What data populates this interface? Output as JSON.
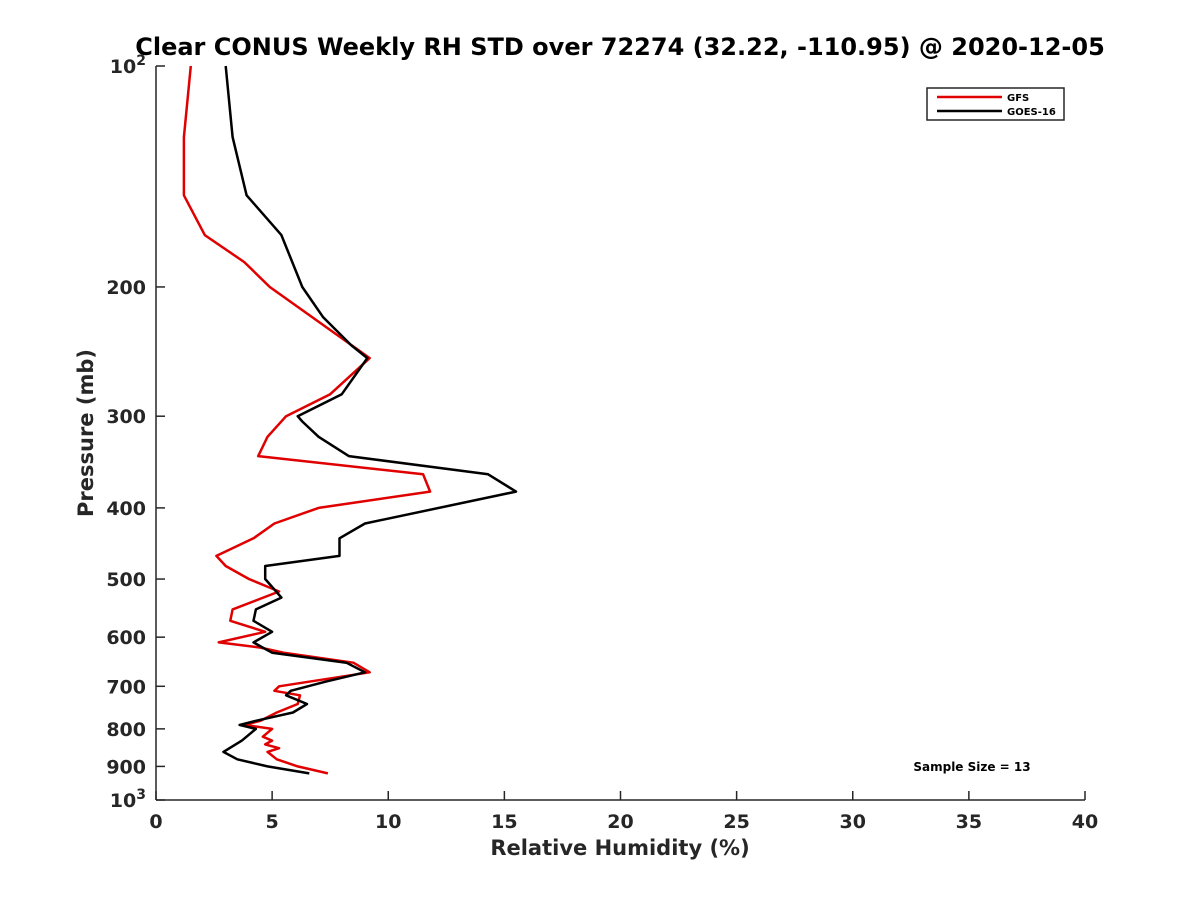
{
  "chart_data": {
    "type": "line",
    "title": "Clear CONUS Weekly RH STD over 72274 (32.22, -110.95) @ 2020-12-05",
    "xlabel": "Relative Humidity (%)",
    "ylabel": "Pressure (mb)",
    "xlim": [
      0,
      40
    ],
    "ylim": [
      100,
      1000
    ],
    "y_scale": "log",
    "y_reversed": true,
    "grid": false,
    "x_ticks": [
      0,
      5,
      10,
      15,
      20,
      25,
      30,
      35,
      40
    ],
    "y_ticks": [
      {
        "value": 100,
        "base": "10",
        "exp": "2"
      },
      {
        "value": 200,
        "label": "200"
      },
      {
        "value": 300,
        "label": "300"
      },
      {
        "value": 400,
        "label": "400"
      },
      {
        "value": 500,
        "label": "500"
      },
      {
        "value": 600,
        "label": "600"
      },
      {
        "value": 700,
        "label": "700"
      },
      {
        "value": 800,
        "label": "800"
      },
      {
        "value": 900,
        "label": "900"
      },
      {
        "value": 1000,
        "base": "10",
        "exp": "3"
      }
    ],
    "legend_position": "top-right",
    "annotation": "Sample Size = 13",
    "series": [
      {
        "name": "GFS",
        "color": "#e00000",
        "points": [
          [
            1.5,
            100
          ],
          [
            1.2,
            125
          ],
          [
            1.2,
            150
          ],
          [
            2.1,
            170
          ],
          [
            3.8,
            185
          ],
          [
            4.9,
            200
          ],
          [
            9.2,
            250
          ],
          [
            7.5,
            280
          ],
          [
            5.6,
            300
          ],
          [
            4.8,
            320
          ],
          [
            4.4,
            340
          ],
          [
            11.5,
            360
          ],
          [
            11.8,
            380
          ],
          [
            7.0,
            400
          ],
          [
            5.1,
            420
          ],
          [
            4.2,
            440
          ],
          [
            2.6,
            465
          ],
          [
            3.0,
            480
          ],
          [
            4.0,
            500
          ],
          [
            5.3,
            520
          ],
          [
            3.3,
            550
          ],
          [
            3.2,
            570
          ],
          [
            4.7,
            590
          ],
          [
            2.7,
            610
          ],
          [
            4.5,
            620
          ],
          [
            5.5,
            630
          ],
          [
            8.5,
            650
          ],
          [
            9.2,
            670
          ],
          [
            5.3,
            700
          ],
          [
            5.1,
            710
          ],
          [
            6.2,
            720
          ],
          [
            6.1,
            740
          ],
          [
            5.2,
            760
          ],
          [
            4.5,
            780
          ],
          [
            3.8,
            790
          ],
          [
            5.0,
            800
          ],
          [
            4.6,
            820
          ],
          [
            5.0,
            830
          ],
          [
            4.7,
            840
          ],
          [
            5.3,
            850
          ],
          [
            4.8,
            860
          ],
          [
            5.2,
            880
          ],
          [
            6.1,
            900
          ],
          [
            7.4,
            920
          ]
        ]
      },
      {
        "name": "GOES-16",
        "color": "#000000",
        "points": [
          [
            3.0,
            100
          ],
          [
            3.3,
            125
          ],
          [
            3.9,
            150
          ],
          [
            5.4,
            170
          ],
          [
            6.3,
            200
          ],
          [
            7.2,
            220
          ],
          [
            8.4,
            240
          ],
          [
            9.1,
            250
          ],
          [
            8.0,
            280
          ],
          [
            6.1,
            300
          ],
          [
            6.3,
            305
          ],
          [
            7.0,
            320
          ],
          [
            8.3,
            340
          ],
          [
            14.3,
            360
          ],
          [
            15.5,
            380
          ],
          [
            9.0,
            420
          ],
          [
            7.9,
            440
          ],
          [
            7.9,
            465
          ],
          [
            4.7,
            480
          ],
          [
            4.7,
            500
          ],
          [
            5.4,
            530
          ],
          [
            4.3,
            550
          ],
          [
            4.2,
            570
          ],
          [
            5.0,
            590
          ],
          [
            4.2,
            610
          ],
          [
            4.6,
            620
          ],
          [
            5.0,
            630
          ],
          [
            8.2,
            650
          ],
          [
            9.0,
            670
          ],
          [
            7.3,
            690
          ],
          [
            5.8,
            710
          ],
          [
            5.6,
            720
          ],
          [
            6.5,
            740
          ],
          [
            5.9,
            760
          ],
          [
            4.3,
            780
          ],
          [
            3.6,
            790
          ],
          [
            4.3,
            800
          ],
          [
            3.7,
            830
          ],
          [
            2.9,
            860
          ],
          [
            3.5,
            880
          ],
          [
            4.8,
            900
          ],
          [
            6.6,
            920
          ]
        ]
      }
    ]
  }
}
